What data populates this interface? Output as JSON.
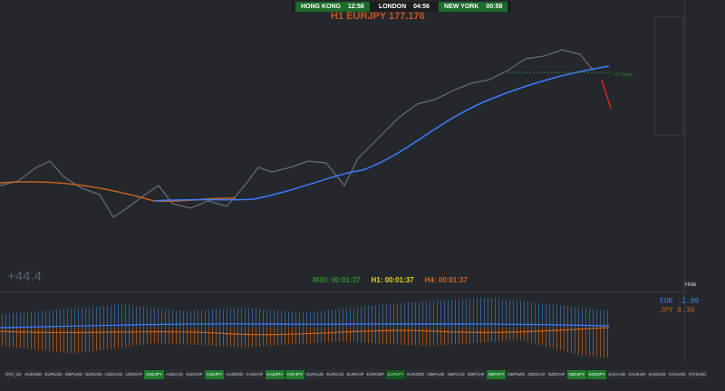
{
  "sessions": [
    {
      "city": "HONG KONG",
      "time": "12:58"
    },
    {
      "city": "LONDON",
      "time": "04:56"
    },
    {
      "city": "NEW YORK",
      "time": "00:58"
    }
  ],
  "header": {
    "title": "H1 EURJPY 177.176"
  },
  "chart": {
    "open_label": "H1 Open",
    "pips": "+44.4",
    "hide": "Hide"
  },
  "timers": [
    "M30: 00:01:37",
    "H1: 00:01:37",
    "H4: 00:01:37"
  ],
  "strength": [
    "EUR -2.09",
    "JPY  8.36"
  ],
  "symbols": [
    {
      "label": "DXY_25"
    },
    {
      "label": "AUDUSD"
    },
    {
      "label": "EURUSD"
    },
    {
      "label": "GBPUSD"
    },
    {
      "label": "NZDUSD"
    },
    {
      "label": "USDCAD"
    },
    {
      "label": "USDCHF"
    },
    {
      "label": "USDJPY",
      "active": true
    },
    {
      "label": "AUDCAD"
    },
    {
      "label": "AUDCHF"
    },
    {
      "label": "AUDJPY",
      "active": true
    },
    {
      "label": "AUDNZD"
    },
    {
      "label": "CADCHF"
    },
    {
      "label": "CADJPY",
      "active": true
    },
    {
      "label": "CHFJPY",
      "active": true
    },
    {
      "label": "EURAUD"
    },
    {
      "label": "EURCAD"
    },
    {
      "label": "EURCHF"
    },
    {
      "label": "EURGBP"
    },
    {
      "label": "EURJPY",
      "active": true,
      "selected": true
    },
    {
      "label": "EURNZD"
    },
    {
      "label": "GBPAUD"
    },
    {
      "label": "GBPCAD"
    },
    {
      "label": "GBPCHF"
    },
    {
      "label": "GBPJPY",
      "active": true
    },
    {
      "label": "GBPNZD"
    },
    {
      "label": "NZDCAD"
    },
    {
      "label": "NZDCHF"
    },
    {
      "label": "NZDJPY",
      "active": true
    },
    {
      "label": "SGDJPY",
      "active": true
    },
    {
      "label": "XAUAUD"
    },
    {
      "label": "XAUEUR"
    },
    {
      "label": "XAGUSD"
    },
    {
      "label": "XAUUSD"
    },
    {
      "label": "ETHUSD"
    }
  ]
}
